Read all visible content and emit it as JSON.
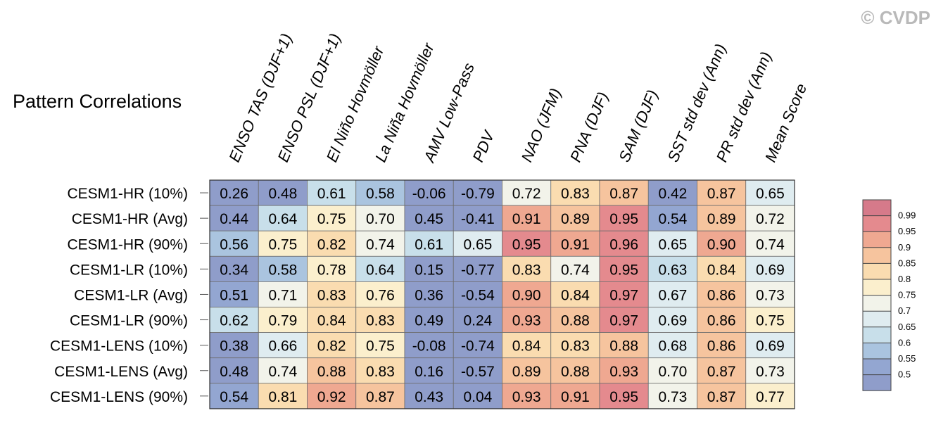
{
  "watermark": "© CVDP",
  "chart_data": {
    "type": "heatmap",
    "title": "Pattern Correlations",
    "columns": [
      "ENSO TAS (DJF+1)",
      "ENSO PSL (DJF+1)",
      "El Niño Hovmöller",
      "La Niña Hovmöller",
      "AMV Low-Pass",
      "PDV",
      "NAO (JFM)",
      "PNA (DJF)",
      "SAM (DJF)",
      "SST std dev (Ann)",
      "PR std dev (Ann)",
      "Mean Score"
    ],
    "rows": [
      "CESM1-HR (10%)",
      "CESM1-HR (Avg)",
      "CESM1-HR (90%)",
      "CESM1-LR (10%)",
      "CESM1-LR (Avg)",
      "CESM1-LR (90%)",
      "CESM1-LENS (10%)",
      "CESM1-LENS (Avg)",
      "CESM1-LENS (90%)"
    ],
    "values": [
      [
        "0.26",
        "0.48",
        "0.61",
        "0.58",
        "-0.06",
        "-0.79",
        "0.72",
        "0.83",
        "0.87",
        "0.42",
        "0.87",
        "0.65"
      ],
      [
        "0.44",
        "0.64",
        "0.75",
        "0.70",
        "0.45",
        "-0.41",
        "0.91",
        "0.89",
        "0.95",
        "0.54",
        "0.89",
        "0.72"
      ],
      [
        "0.56",
        "0.75",
        "0.82",
        "0.74",
        "0.61",
        "0.65",
        "0.95",
        "0.91",
        "0.96",
        "0.65",
        "0.90",
        "0.74"
      ],
      [
        "0.34",
        "0.58",
        "0.78",
        "0.64",
        "0.15",
        "-0.77",
        "0.83",
        "0.74",
        "0.95",
        "0.63",
        "0.84",
        "0.69"
      ],
      [
        "0.51",
        "0.71",
        "0.83",
        "0.76",
        "0.36",
        "-0.54",
        "0.90",
        "0.84",
        "0.97",
        "0.67",
        "0.86",
        "0.73"
      ],
      [
        "0.62",
        "0.79",
        "0.84",
        "0.83",
        "0.49",
        "0.24",
        "0.93",
        "0.88",
        "0.97",
        "0.69",
        "0.86",
        "0.75"
      ],
      [
        "0.38",
        "0.66",
        "0.82",
        "0.75",
        "-0.08",
        "-0.74",
        "0.84",
        "0.83",
        "0.88",
        "0.68",
        "0.86",
        "0.69"
      ],
      [
        "0.48",
        "0.74",
        "0.88",
        "0.83",
        "0.16",
        "-0.57",
        "0.89",
        "0.88",
        "0.93",
        "0.70",
        "0.87",
        "0.73"
      ],
      [
        "0.54",
        "0.81",
        "0.92",
        "0.87",
        "0.43",
        "0.04",
        "0.93",
        "0.91",
        "0.95",
        "0.73",
        "0.87",
        "0.77"
      ]
    ],
    "colorbar": {
      "labels": [
        "0.99",
        "0.95",
        "0.9",
        "0.85",
        "0.8",
        "0.75",
        "0.7",
        "0.65",
        "0.6",
        "0.55",
        "0.5"
      ],
      "colors": [
        "#d67a8a",
        "#e48a8e",
        "#efa891",
        "#f6c49e",
        "#fadcb0",
        "#fbefcd",
        "#f2f3ea",
        "#dfecf0",
        "#c8dfea",
        "#aac4df",
        "#93a6d1",
        "#8f9dca"
      ]
    },
    "thresholds": [
      0.5,
      0.55,
      0.6,
      0.65,
      0.7,
      0.75,
      0.8,
      0.85,
      0.9,
      0.95,
      0.99
    ]
  }
}
